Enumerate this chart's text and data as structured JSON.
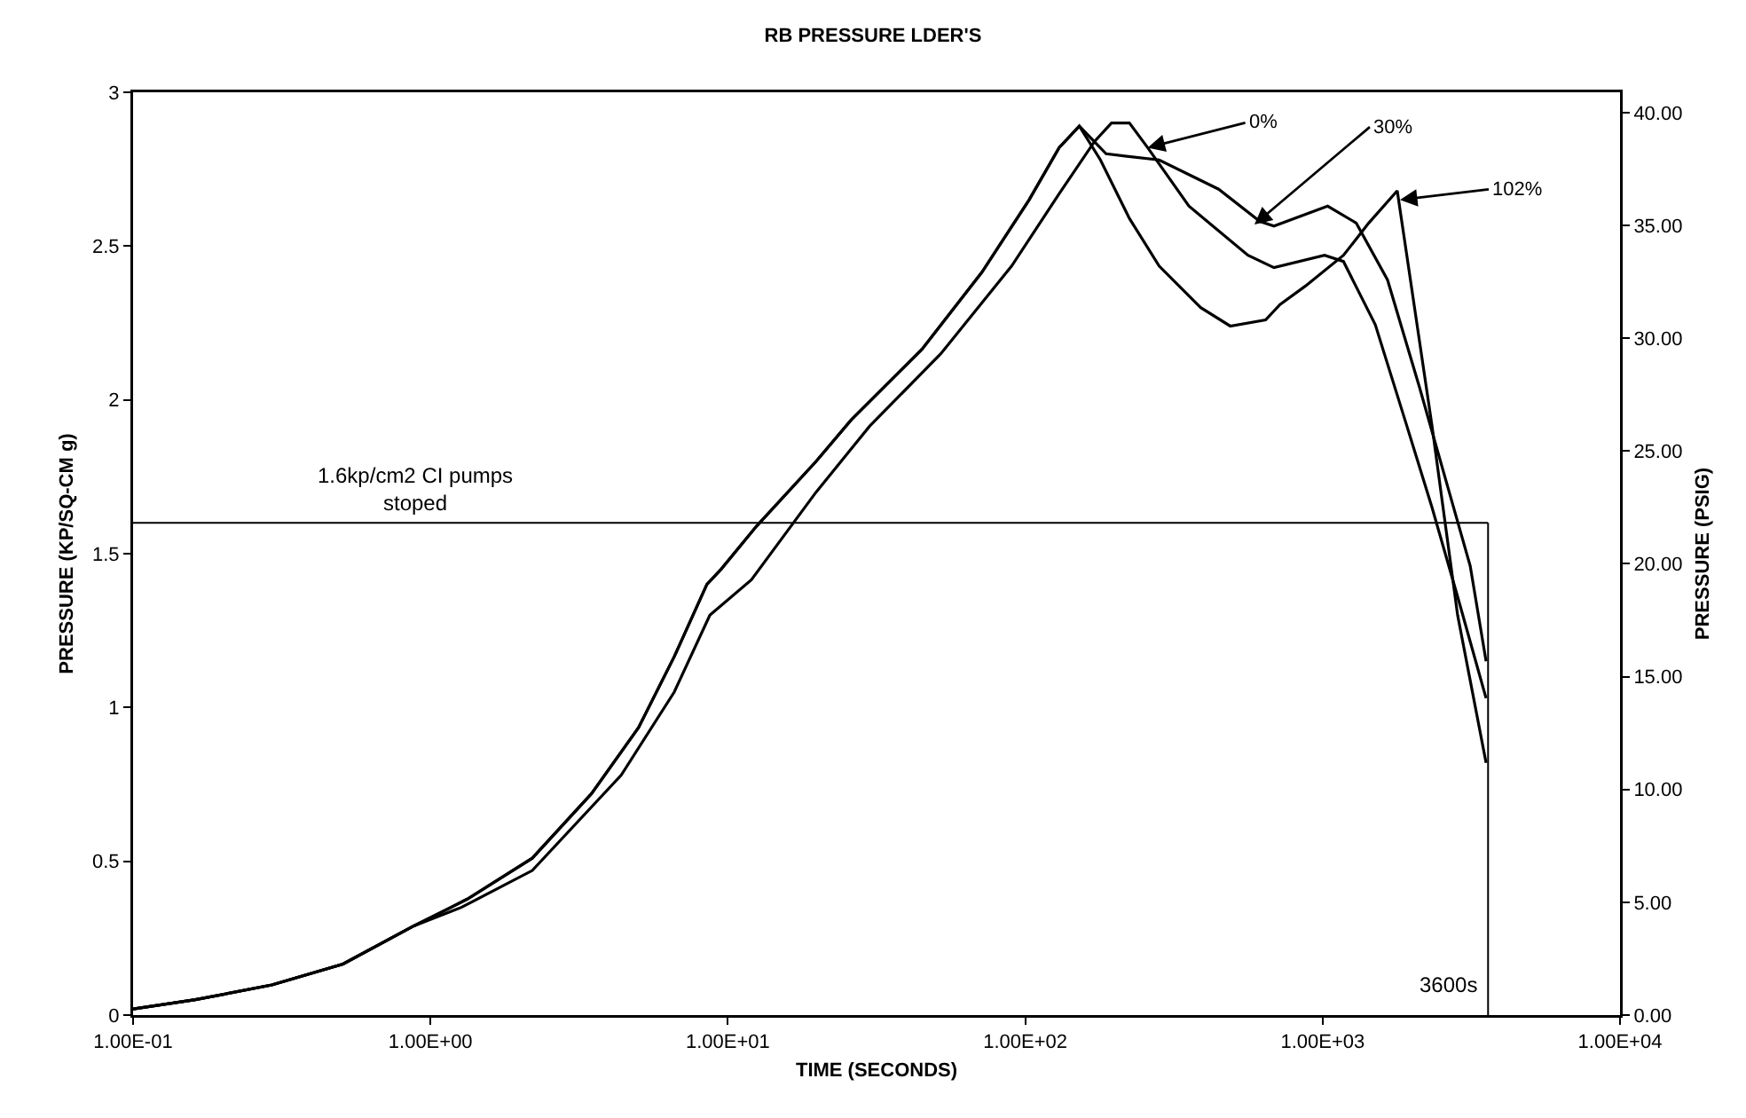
{
  "chart_data": {
    "type": "line",
    "title": "RB PRESSURE LDER'S",
    "xlabel": "TIME (SECONDS)",
    "ylabel": "PRESSURE (KP/SQ-CM g)",
    "y2label": "PRESSURE (PSIG)",
    "log": "x",
    "grid": false,
    "marker": "none",
    "line_style": "solid",
    "xlim": [
      0.1,
      10000
    ],
    "xticks": [
      {
        "value": 0.1,
        "label": "1.00E-01"
      },
      {
        "value": 1,
        "label": "1.00E+00"
      },
      {
        "value": 10,
        "label": "1.00E+01"
      },
      {
        "value": 100,
        "label": "1.00E+02"
      },
      {
        "value": 1000,
        "label": "1.00E+03"
      },
      {
        "value": 10000,
        "label": "1.00E+04"
      }
    ],
    "ylim": [
      0,
      3
    ],
    "yticks": [
      0,
      0.5,
      1,
      1.5,
      2,
      2.5,
      3
    ],
    "y2lim": [
      0,
      40.9
    ],
    "y2ticks": [
      {
        "value": 0,
        "label": "0.00"
      },
      {
        "value": 5,
        "label": "5.00"
      },
      {
        "value": 10,
        "label": "10.00"
      },
      {
        "value": 15,
        "label": "15.00"
      },
      {
        "value": 20,
        "label": "20.00"
      },
      {
        "value": 25,
        "label": "25.00"
      },
      {
        "value": 30,
        "label": "30.00"
      },
      {
        "value": 35,
        "label": "35.00"
      },
      {
        "value": 40,
        "label": "40.00"
      }
    ],
    "series": [
      {
        "color": "#000000",
        "x": [
          0.1,
          0.162,
          0.293,
          0.508,
          0.88,
          1.27,
          2.2,
          4.38,
          6.6,
          8.7,
          12,
          19.8,
          30,
          52,
          90,
          130,
          171,
          195,
          224,
          258,
          355,
          561,
          686,
          1015,
          1175,
          1503,
          1920,
          2333,
          2844,
          3545
        ],
        "values": [
          0.02,
          0.05,
          0.098,
          0.166,
          0.29,
          0.35,
          0.47,
          0.78,
          1.05,
          1.3,
          1.415,
          1.7,
          1.915,
          2.15,
          2.435,
          2.67,
          2.84,
          2.9,
          2.9,
          2.82,
          2.63,
          2.47,
          2.43,
          2.47,
          2.45,
          2.245,
          1.915,
          1.65,
          1.36,
          1.03
        ]
      },
      {
        "color": "#000000",
        "x": [
          0.1,
          0.162,
          0.293,
          0.508,
          0.88,
          1.33,
          2.2,
          3.48,
          5.01,
          6.6,
          8.5,
          9.5,
          12.5,
          19.8,
          26,
          45,
          71.5,
          103,
          130,
          152,
          187,
          282,
          447,
          615,
          686,
          1040,
          1297,
          1653,
          2118,
          2577,
          3135,
          3545
        ],
        "values": [
          0.02,
          0.05,
          0.098,
          0.166,
          0.29,
          0.377,
          0.51,
          0.72,
          0.935,
          1.165,
          1.4,
          1.45,
          1.59,
          1.8,
          1.935,
          2.165,
          2.415,
          2.65,
          2.82,
          2.89,
          2.8,
          2.78,
          2.685,
          2.58,
          2.565,
          2.63,
          2.575,
          2.39,
          2.04,
          1.75,
          1.46,
          1.15
        ]
      },
      {
        "color": "#000000",
        "x": [
          0.1,
          0.162,
          0.293,
          0.508,
          0.88,
          1.33,
          2.2,
          3.48,
          5.01,
          6.6,
          8.5,
          9.5,
          12.5,
          19.8,
          26,
          45,
          71.5,
          103,
          130,
          152,
          179,
          224,
          282,
          389,
          489,
          643,
          719,
          875,
          1175,
          1429,
          1782,
          2333,
          2844,
          3545
        ],
        "values": [
          0.02,
          0.05,
          0.098,
          0.166,
          0.29,
          0.377,
          0.51,
          0.72,
          0.935,
          1.165,
          1.4,
          1.45,
          1.59,
          1.8,
          1.935,
          2.165,
          2.415,
          2.65,
          2.82,
          2.89,
          2.78,
          2.59,
          2.435,
          2.3,
          2.24,
          2.26,
          2.31,
          2.37,
          2.47,
          2.575,
          2.68,
          1.915,
          1.3,
          0.82
        ]
      }
    ],
    "ref_lines": [
      {
        "axis": "y",
        "value": 1.6,
        "label": "1.6kp/cm2 CI pumps\nstoped",
        "color": "#000000"
      },
      {
        "axis": "x",
        "value": 3600,
        "label": "3600s",
        "color": "#000000"
      }
    ],
    "annotations": [
      {
        "text": "0%",
        "x": 258,
        "y": 2.82
      },
      {
        "text": "30%",
        "x": 590,
        "y": 2.57
      },
      {
        "text": "102%",
        "x": 1820,
        "y": 2.65
      }
    ]
  }
}
